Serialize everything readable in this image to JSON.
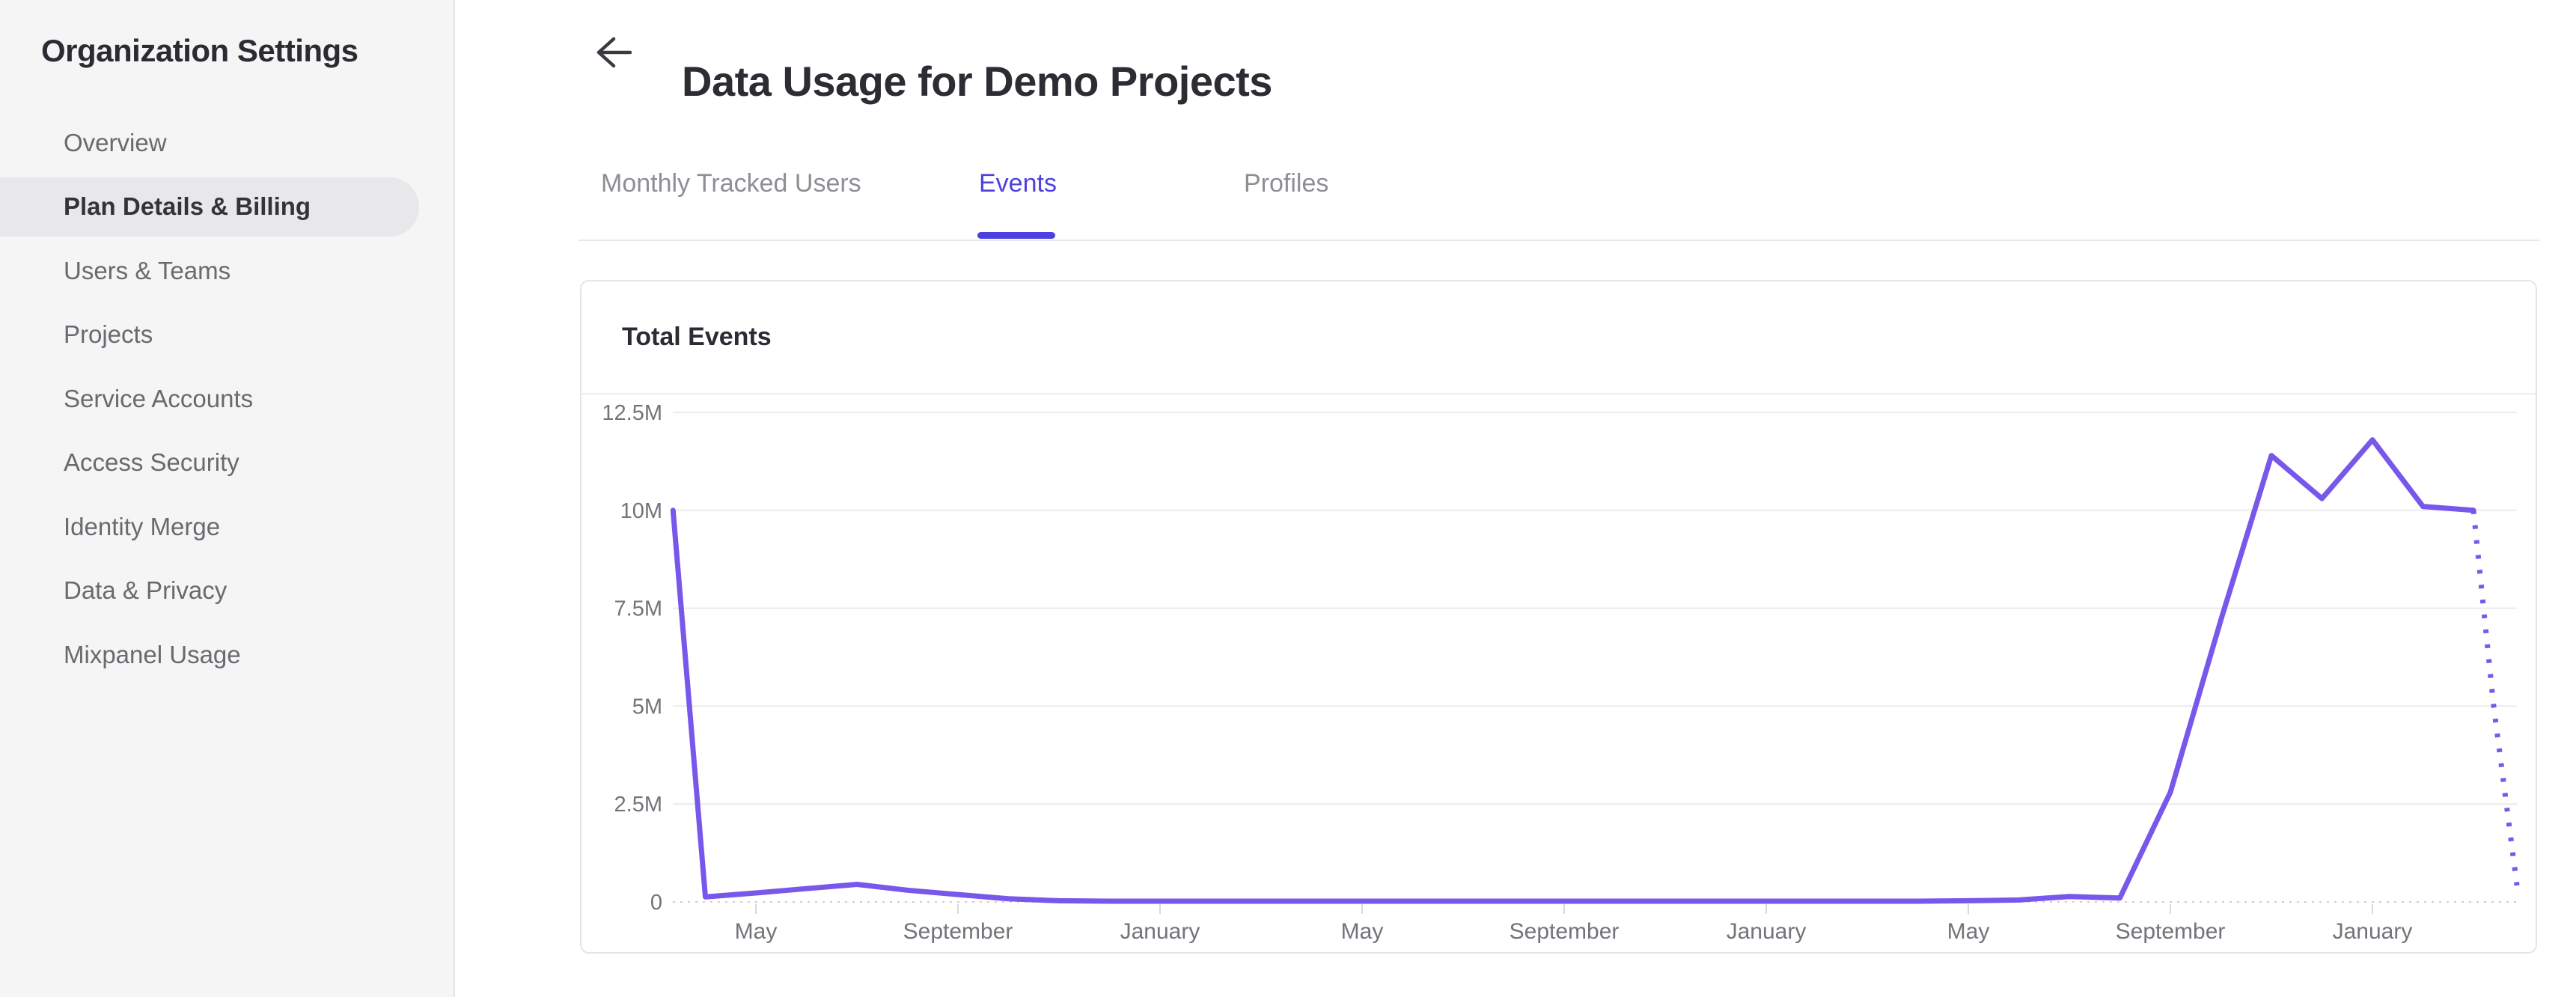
{
  "sidebar": {
    "title": "Organization Settings",
    "items": [
      {
        "label": "Overview",
        "selected": false
      },
      {
        "label": "Plan Details & Billing",
        "selected": true
      },
      {
        "label": "Users & Teams",
        "selected": false
      },
      {
        "label": "Projects",
        "selected": false
      },
      {
        "label": "Service Accounts",
        "selected": false
      },
      {
        "label": "Access Security",
        "selected": false
      },
      {
        "label": "Identity Merge",
        "selected": false
      },
      {
        "label": "Data & Privacy",
        "selected": false
      },
      {
        "label": "Mixpanel Usage",
        "selected": false
      }
    ]
  },
  "header": {
    "back_icon": "arrow-left-icon",
    "title": "Data Usage for Demo Projects"
  },
  "tabs": [
    {
      "label": "Monthly Tracked Users",
      "active": false
    },
    {
      "label": "Events",
      "active": true
    },
    {
      "label": "Profiles",
      "active": false
    }
  ],
  "card": {
    "title": "Total Events"
  },
  "colors": {
    "accent_tab": "#4d40e0",
    "chart_line": "#7857eb",
    "sidebar_bg": "#f5f5f6",
    "sidebar_selected_bg": "#e8e8ea",
    "gridline": "#ebebed",
    "axis_text": "#73737a"
  },
  "chart_data": {
    "type": "line",
    "title": "Total Events",
    "series_name": "Total Events",
    "y_unit": "events",
    "ylim_millions": [
      0,
      12.5
    ],
    "grid": true,
    "legend": "none",
    "y_ticks": [
      {
        "label": "12.5M",
        "value": 12.5
      },
      {
        "label": "10M",
        "value": 10
      },
      {
        "label": "7.5M",
        "value": 7.5
      },
      {
        "label": "5M",
        "value": 5
      },
      {
        "label": "2.5M",
        "value": 2.5
      },
      {
        "label": "0",
        "value": 0
      }
    ],
    "x_ticks": [
      {
        "label": "May",
        "m": 0
      },
      {
        "label": "September",
        "m": 4
      },
      {
        "label": "January",
        "m": 8
      },
      {
        "label": "May",
        "m": 12
      },
      {
        "label": "September",
        "m": 16
      },
      {
        "label": "January",
        "m": 20
      },
      {
        "label": "May",
        "m": 24
      },
      {
        "label": "September",
        "m": 28
      },
      {
        "label": "January",
        "m": 32
      }
    ],
    "x_unit_note": "m = months after first May tick; series starts in March",
    "points": [
      {
        "m": -1.64,
        "v": 10.0
      },
      {
        "m": -1,
        "v": 0.13
      },
      {
        "m": 0,
        "v": 0.23
      },
      {
        "m": 1,
        "v": 0.34
      },
      {
        "m": 2,
        "v": 0.45
      },
      {
        "m": 3,
        "v": 0.3
      },
      {
        "m": 4,
        "v": 0.19
      },
      {
        "m": 5,
        "v": 0.08
      },
      {
        "m": 6,
        "v": 0.03
      },
      {
        "m": 7,
        "v": 0.02
      },
      {
        "m": 8,
        "v": 0.02
      },
      {
        "m": 9,
        "v": 0.02
      },
      {
        "m": 10,
        "v": 0.02
      },
      {
        "m": 11,
        "v": 0.02
      },
      {
        "m": 12,
        "v": 0.02
      },
      {
        "m": 13,
        "v": 0.02
      },
      {
        "m": 14,
        "v": 0.02
      },
      {
        "m": 15,
        "v": 0.02
      },
      {
        "m": 16,
        "v": 0.02
      },
      {
        "m": 17,
        "v": 0.02
      },
      {
        "m": 18,
        "v": 0.02
      },
      {
        "m": 19,
        "v": 0.02
      },
      {
        "m": 20,
        "v": 0.02
      },
      {
        "m": 21,
        "v": 0.02
      },
      {
        "m": 22,
        "v": 0.02
      },
      {
        "m": 23,
        "v": 0.02
      },
      {
        "m": 24,
        "v": 0.03
      },
      {
        "m": 25,
        "v": 0.05
      },
      {
        "m": 26,
        "v": 0.14
      },
      {
        "m": 27,
        "v": 0.1
      },
      {
        "m": 28,
        "v": 2.8
      },
      {
        "m": 29,
        "v": 7.2
      },
      {
        "m": 30,
        "v": 11.4
      },
      {
        "m": 31,
        "v": 10.3
      },
      {
        "m": 32,
        "v": 11.8
      },
      {
        "m": 33,
        "v": 10.1
      },
      {
        "m": 34,
        "v": 10.0
      }
    ],
    "projection_points": [
      {
        "m": 34,
        "v": 10.0
      },
      {
        "m": 34.4,
        "v": 5.0
      },
      {
        "m": 34.86,
        "v": 0.42
      }
    ]
  }
}
